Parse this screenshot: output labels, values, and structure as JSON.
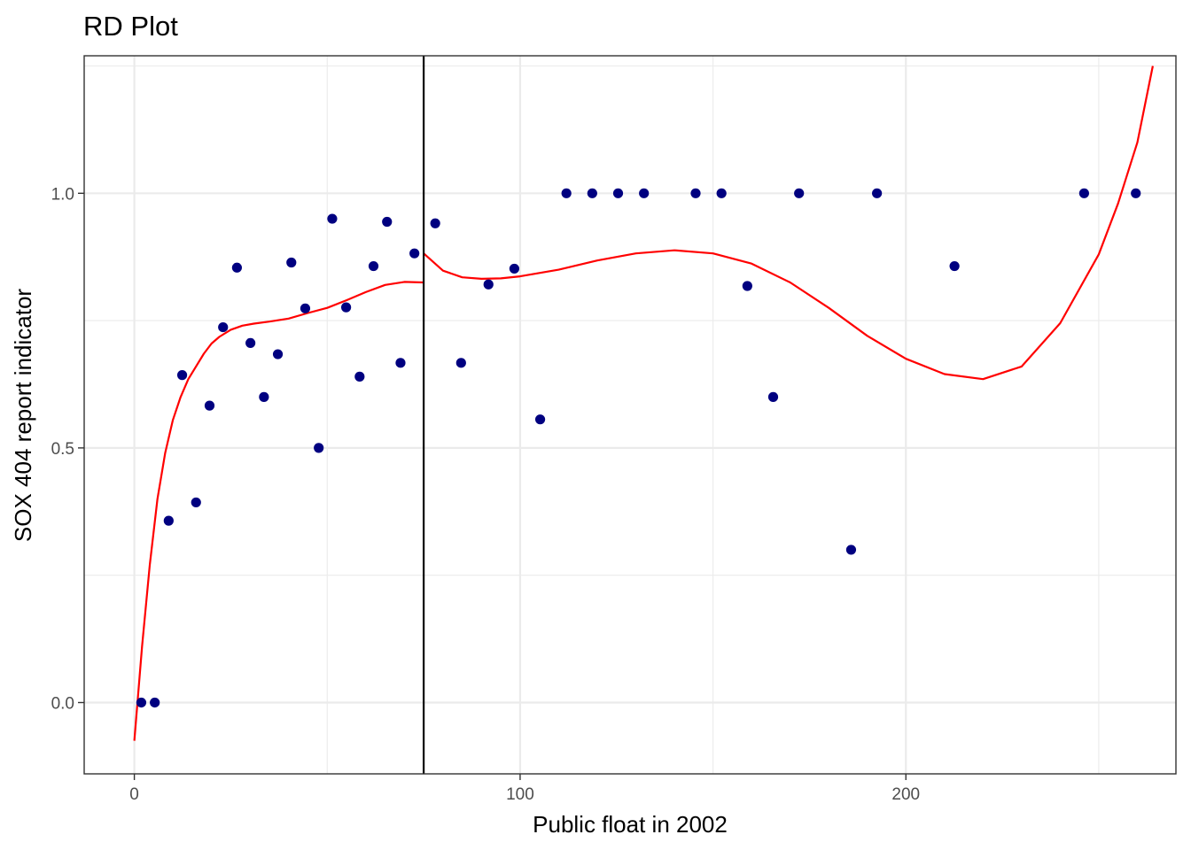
{
  "chart_data": {
    "type": "scatter",
    "title": "RD Plot",
    "xlabel": "Public float in 2002",
    "ylabel": "SOX 404 report indicator",
    "xlim": [
      -13,
      270
    ],
    "ylim": [
      -0.14,
      1.27
    ],
    "x_ticks": [
      0,
      100,
      200
    ],
    "x_tick_labels": [
      "0",
      "100",
      "200"
    ],
    "y_ticks": [
      0.0,
      0.5,
      1.0
    ],
    "y_tick_labels": [
      "0.0",
      "0.5",
      "1.0"
    ],
    "grid": true,
    "cutoff": 75,
    "colors": {
      "points": "#000080",
      "fit": "#ff0000",
      "cutoff": "#000000",
      "grid": "#ebebeb",
      "panel_border": "#333333"
    },
    "points": [
      {
        "x": 1.8,
        "y": 0.0
      },
      {
        "x": 5.3,
        "y": 0.0
      },
      {
        "x": 8.9,
        "y": 0.357
      },
      {
        "x": 12.4,
        "y": 0.643
      },
      {
        "x": 16.0,
        "y": 0.393
      },
      {
        "x": 19.5,
        "y": 0.583
      },
      {
        "x": 23.0,
        "y": 0.737
      },
      {
        "x": 26.6,
        "y": 0.854
      },
      {
        "x": 30.1,
        "y": 0.706
      },
      {
        "x": 33.6,
        "y": 0.6
      },
      {
        "x": 37.2,
        "y": 0.684
      },
      {
        "x": 40.7,
        "y": 0.864
      },
      {
        "x": 44.3,
        "y": 0.774
      },
      {
        "x": 47.8,
        "y": 0.5
      },
      {
        "x": 51.3,
        "y": 0.95
      },
      {
        "x": 54.9,
        "y": 0.776
      },
      {
        "x": 58.4,
        "y": 0.64
      },
      {
        "x": 62.0,
        "y": 0.857
      },
      {
        "x": 65.5,
        "y": 0.944
      },
      {
        "x": 69.0,
        "y": 0.667
      },
      {
        "x": 72.6,
        "y": 0.882
      },
      {
        "x": 78.0,
        "y": 0.941
      },
      {
        "x": 84.7,
        "y": 0.667
      },
      {
        "x": 91.8,
        "y": 0.821
      },
      {
        "x": 98.5,
        "y": 0.852
      },
      {
        "x": 105.2,
        "y": 0.556
      },
      {
        "x": 112.0,
        "y": 1.0
      },
      {
        "x": 118.7,
        "y": 1.0
      },
      {
        "x": 125.4,
        "y": 1.0
      },
      {
        "x": 132.1,
        "y": 1.0
      },
      {
        "x": 145.5,
        "y": 1.0
      },
      {
        "x": 152.2,
        "y": 1.0
      },
      {
        "x": 158.9,
        "y": 0.818
      },
      {
        "x": 165.6,
        "y": 0.6
      },
      {
        "x": 172.3,
        "y": 1.0
      },
      {
        "x": 185.8,
        "y": 0.3
      },
      {
        "x": 192.5,
        "y": 1.0
      },
      {
        "x": 212.6,
        "y": 0.857
      },
      {
        "x": 246.2,
        "y": 1.0
      },
      {
        "x": 259.6,
        "y": 1.0
      }
    ],
    "fit_left": [
      [
        0,
        -0.075
      ],
      [
        2,
        0.11
      ],
      [
        4,
        0.27
      ],
      [
        6,
        0.4
      ],
      [
        8,
        0.49
      ],
      [
        10,
        0.555
      ],
      [
        12,
        0.6
      ],
      [
        14,
        0.635
      ],
      [
        16,
        0.66
      ],
      [
        18,
        0.685
      ],
      [
        20,
        0.705
      ],
      [
        22,
        0.718
      ],
      [
        25,
        0.732
      ],
      [
        28,
        0.74
      ],
      [
        31,
        0.744
      ],
      [
        35,
        0.748
      ],
      [
        40,
        0.754
      ],
      [
        45,
        0.765
      ],
      [
        50,
        0.775
      ],
      [
        55,
        0.79
      ],
      [
        60,
        0.806
      ],
      [
        65,
        0.82
      ],
      [
        70,
        0.826
      ],
      [
        75,
        0.825
      ]
    ],
    "fit_right": [
      [
        75,
        0.882
      ],
      [
        80,
        0.848
      ],
      [
        85,
        0.835
      ],
      [
        90,
        0.832
      ],
      [
        95,
        0.833
      ],
      [
        100,
        0.837
      ],
      [
        110,
        0.85
      ],
      [
        120,
        0.868
      ],
      [
        130,
        0.882
      ],
      [
        140,
        0.888
      ],
      [
        150,
        0.882
      ],
      [
        160,
        0.862
      ],
      [
        170,
        0.825
      ],
      [
        180,
        0.775
      ],
      [
        190,
        0.72
      ],
      [
        200,
        0.675
      ],
      [
        210,
        0.645
      ],
      [
        220,
        0.635
      ],
      [
        230,
        0.66
      ],
      [
        240,
        0.745
      ],
      [
        250,
        0.88
      ],
      [
        255,
        0.98
      ],
      [
        260,
        1.1
      ],
      [
        264,
        1.25
      ]
    ]
  }
}
